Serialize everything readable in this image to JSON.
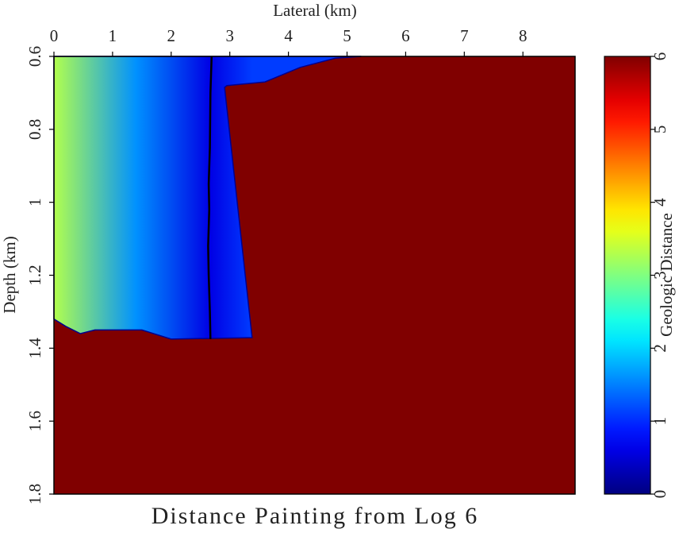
{
  "chart_data": {
    "type": "heatmap",
    "title": "Distance Painting from Log 6",
    "xlabel": "Lateral (km)",
    "ylabel": "Depth (km)",
    "colorbar_label": "Geologic Distance",
    "colormap": "jet",
    "xlim": [
      0,
      8.89
    ],
    "xticks": [
      0,
      1,
      2,
      3,
      4,
      5,
      6,
      7,
      8
    ],
    "ylim": [
      0.6,
      1.8
    ],
    "yticks": [
      0.6,
      0.8,
      1,
      1.2,
      1.4,
      1.6,
      1.8
    ],
    "clim": [
      0,
      6
    ],
    "cticks": [
      0,
      1,
      2,
      3,
      4,
      5,
      6
    ],
    "fill_value": 6,
    "painted_zone": {
      "x": [
        0,
        5.24,
        4.8,
        4.2,
        3.6,
        2.95,
        2.91,
        3.38,
        2.0,
        1.5,
        0.7,
        0.45,
        0.2,
        0
      ],
      "depth": [
        0.6,
        0.6,
        0.605,
        0.63,
        0.67,
        0.68,
        0.685,
        1.371,
        1.375,
        1.35,
        1.35,
        1.36,
        1.34,
        1.32
      ]
    },
    "distance_profile": {
      "x": [
        0,
        1.4,
        2.67,
        3.38
      ],
      "values": [
        3.3,
        1.6,
        0.6,
        1.1
      ]
    },
    "log": {
      "x": [
        2.69,
        2.67,
        2.66,
        2.64,
        2.65,
        2.63,
        2.64,
        2.66,
        2.67
      ],
      "depth": [
        0.6,
        0.7,
        0.85,
        0.95,
        1.02,
        1.12,
        1.2,
        1.3,
        1.375
      ]
    }
  }
}
